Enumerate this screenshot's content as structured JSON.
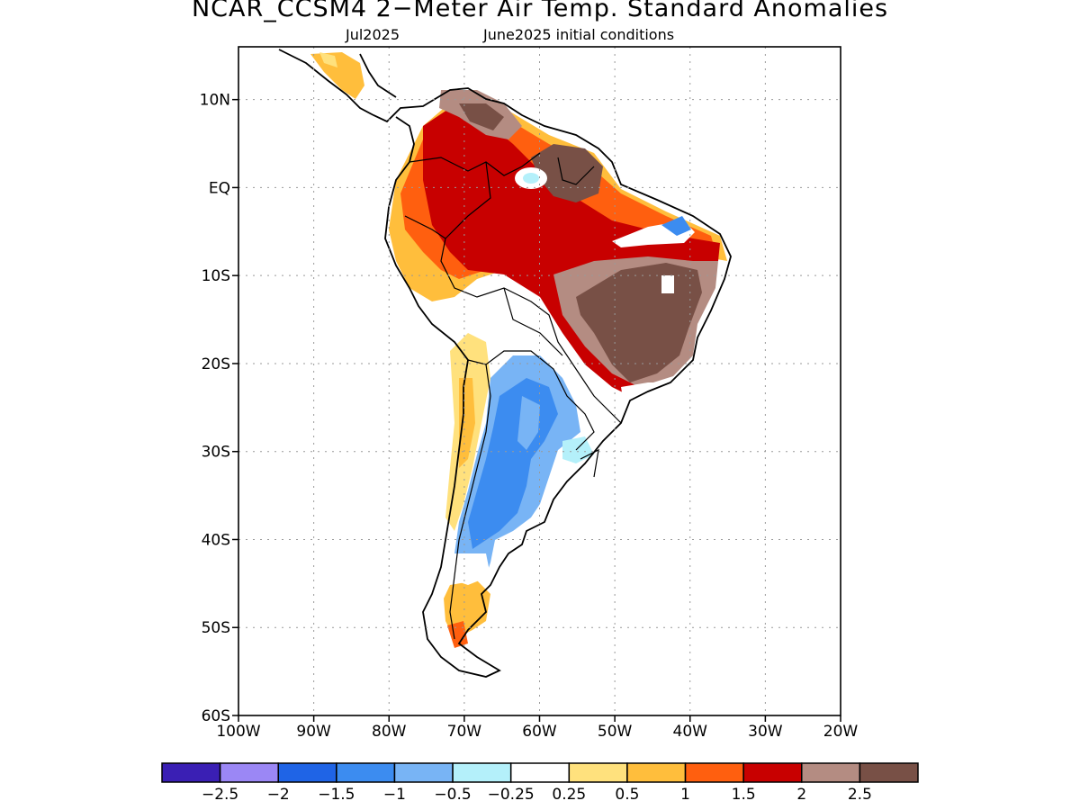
{
  "title": "NCAR_CCSM4 2−Meter Air Temp. Standard Anomalies",
  "subtitle_left": "Jul2025",
  "subtitle_right": "June2025 initial conditions",
  "map": {
    "lon_range": [
      -100,
      -20
    ],
    "lat_range": [
      -60,
      16
    ],
    "lat_ticks": [
      {
        "value": 10,
        "label": "10N"
      },
      {
        "value": 0,
        "label": "EQ"
      },
      {
        "value": -10,
        "label": "10S"
      },
      {
        "value": -20,
        "label": "20S"
      },
      {
        "value": -30,
        "label": "30S"
      },
      {
        "value": -40,
        "label": "40S"
      },
      {
        "value": -50,
        "label": "50S"
      },
      {
        "value": -60,
        "label": "60S"
      }
    ],
    "lon_ticks": [
      {
        "value": -100,
        "label": "100W"
      },
      {
        "value": -90,
        "label": "90W"
      },
      {
        "value": -80,
        "label": "80W"
      },
      {
        "value": -70,
        "label": "70W"
      },
      {
        "value": -60,
        "label": "60W"
      },
      {
        "value": -50,
        "label": "50W"
      },
      {
        "value": -40,
        "label": "40W"
      },
      {
        "value": -30,
        "label": "30W"
      },
      {
        "value": -20,
        "label": "20W"
      }
    ],
    "grid": true
  },
  "colorbar": {
    "colors": [
      "#3a1fb4",
      "#9b87f5",
      "#1f64e6",
      "#3c8cf0",
      "#78b4f5",
      "#b4f0fa",
      "#ffffff",
      "#ffe17d",
      "#ffbe3c",
      "#ff5f0f",
      "#c80000",
      "#b48c82",
      "#785046"
    ],
    "labels": [
      "−2.5",
      "−2",
      "−1.5",
      "−1",
      "−0.5",
      "−0.25",
      "0.25",
      "0.5",
      "1",
      "1.5",
      "2",
      "2.5"
    ]
  }
}
